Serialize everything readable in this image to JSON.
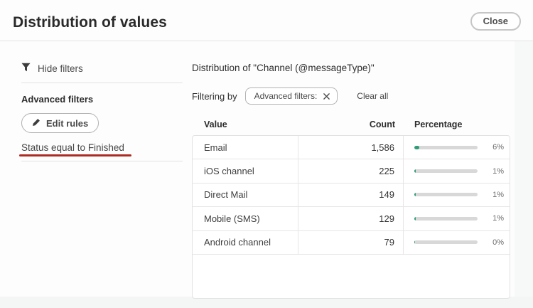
{
  "dialog": {
    "title": "Distribution of values",
    "close_label": "Close"
  },
  "sidebar": {
    "hide_filters_label": "Hide filters",
    "advanced_filters_heading": "Advanced filters",
    "edit_rules_label": "Edit rules",
    "active_filter_rule": "Status equal to Finished"
  },
  "main": {
    "distribution_title": "Distribution of \"Channel (@messageType)\"",
    "filtering_by_label": "Filtering by",
    "filter_chip_label": "Advanced filters:",
    "clear_all_label": "Clear all"
  },
  "table": {
    "columns": [
      "Value",
      "Count",
      "Percentage"
    ],
    "rows": [
      {
        "value": "Email",
        "count": "1,586",
        "percentage": 6,
        "percentage_label": "6%"
      },
      {
        "value": "iOS channel",
        "count": "225",
        "percentage": 1,
        "percentage_label": "1%"
      },
      {
        "value": "Direct Mail",
        "count": "149",
        "percentage": 1,
        "percentage_label": "1%"
      },
      {
        "value": "Mobile (SMS)",
        "count": "129",
        "percentage": 1,
        "percentage_label": "1%"
      },
      {
        "value": "Android channel",
        "count": "79",
        "percentage": 0,
        "percentage_label": "0%"
      }
    ]
  },
  "icons": {
    "hide_filters": "funnel-icon",
    "edit_rules": "pencil-icon",
    "chip_remove": "x-icon"
  },
  "colors": {
    "bar_fill": "#2d9d78",
    "bar_track": "#d8d8d8",
    "annotation_underline": "#ae2b23",
    "table_border": "#e2e2e2",
    "text_primary": "#2c2c2c",
    "text_secondary": "#4b4b4b"
  }
}
